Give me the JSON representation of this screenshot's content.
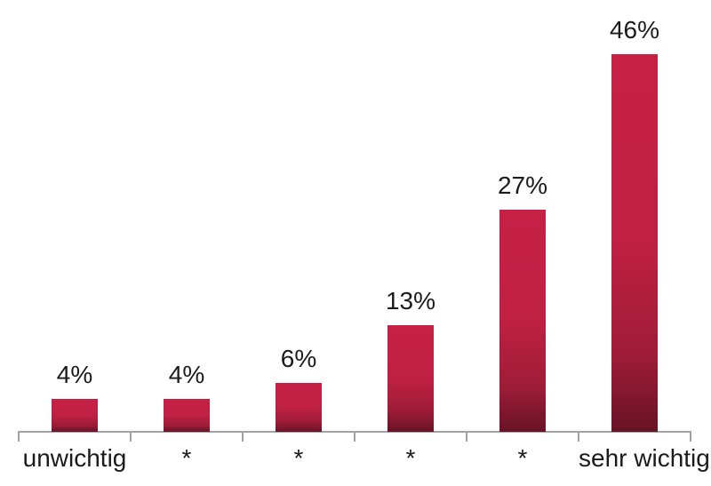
{
  "chart_data": {
    "type": "bar",
    "title": "",
    "xlabel": "",
    "ylabel": "",
    "categories": [
      "unwichtig",
      "*",
      "*",
      "*",
      "*",
      "sehr wichtig"
    ],
    "values": [
      4,
      4,
      6,
      13,
      27,
      46
    ],
    "labels": [
      "4%",
      "4%",
      "6%",
      "13%",
      "27%",
      "46%"
    ],
    "unit": "percent",
    "ylim": [
      0,
      50
    ],
    "grid": false,
    "legend": "none",
    "axis_ticks": "category-boundaries",
    "colors": {
      "bar_gradient_stops": [
        "#c62045",
        "#bf2043",
        "#9e1c38",
        "#671326"
      ],
      "bar_gradient_positions": [
        "0%",
        "50%",
        "80%",
        "100%"
      ],
      "axis": "#a3a3a3",
      "text": "#1b1b1b",
      "background": "#ffffff"
    }
  }
}
